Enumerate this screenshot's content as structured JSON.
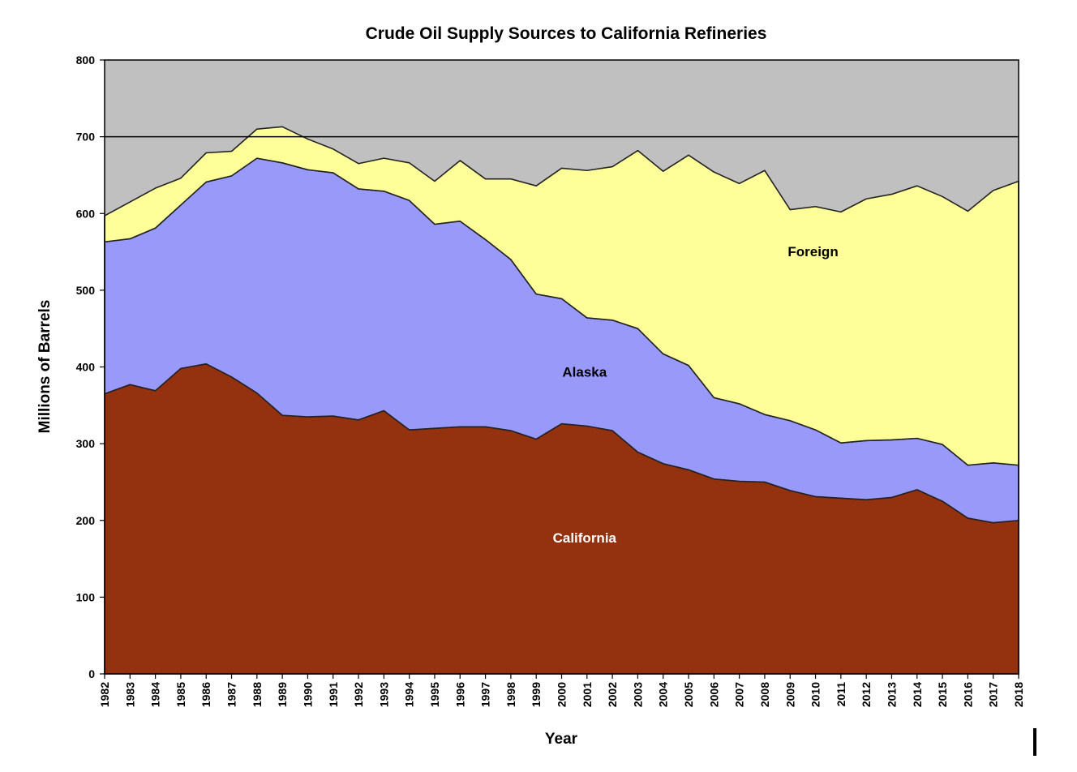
{
  "chart_data": {
    "type": "area",
    "stacked": true,
    "title": "Crude Oil Supply Sources to California Refineries",
    "xlabel": "Year",
    "ylabel": "Millions of Barrels",
    "ylim": [
      0,
      800
    ],
    "yticks": [
      "0",
      "100",
      "200",
      "300",
      "400",
      "500",
      "600",
      "700",
      "800"
    ],
    "reference_line": 700,
    "background_color": "#c0c0c0",
    "grid": false,
    "x": [
      "1982",
      "1983",
      "1984",
      "1985",
      "1986",
      "1987",
      "1988",
      "1989",
      "1990",
      "1991",
      "1992",
      "1993",
      "1994",
      "1995",
      "1996",
      "1997",
      "1998",
      "1999",
      "2000",
      "2001",
      "2002",
      "2003",
      "2004",
      "2005",
      "2006",
      "2007",
      "2008",
      "2009",
      "2010",
      "2011",
      "2012",
      "2013",
      "2014",
      "2015",
      "2016",
      "2017",
      "2018"
    ],
    "series": [
      {
        "name": "California",
        "color": "#94310e",
        "label_color": "#ffffff",
        "values": [
          365,
          377,
          369,
          398,
          404,
          387,
          366,
          337,
          335,
          336,
          331,
          343,
          318,
          320,
          322,
          322,
          317,
          306,
          326,
          323,
          317,
          289,
          274,
          266,
          254,
          251,
          250,
          239,
          231,
          229,
          227,
          230,
          240,
          225,
          203,
          197,
          200
        ]
      },
      {
        "name": "Alaska",
        "color": "#9999fa",
        "label_color": "#000000",
        "values": [
          198,
          190,
          212,
          213,
          237,
          262,
          306,
          329,
          322,
          317,
          301,
          286,
          299,
          266,
          268,
          244,
          223,
          189,
          163,
          141,
          144,
          161,
          143,
          136,
          106,
          101,
          88,
          91,
          87,
          72,
          77,
          75,
          67,
          74,
          69,
          78,
          72
        ]
      },
      {
        "name": "Foreign",
        "color": "#ffff99",
        "label_color": "#000000",
        "values": [
          34,
          48,
          52,
          35,
          38,
          32,
          38,
          47,
          40,
          31,
          33,
          43,
          49,
          56,
          79,
          79,
          105,
          141,
          170,
          192,
          200,
          232,
          238,
          274,
          294,
          287,
          318,
          275,
          291,
          301,
          315,
          320,
          329,
          323,
          331,
          355,
          370
        ]
      }
    ]
  }
}
